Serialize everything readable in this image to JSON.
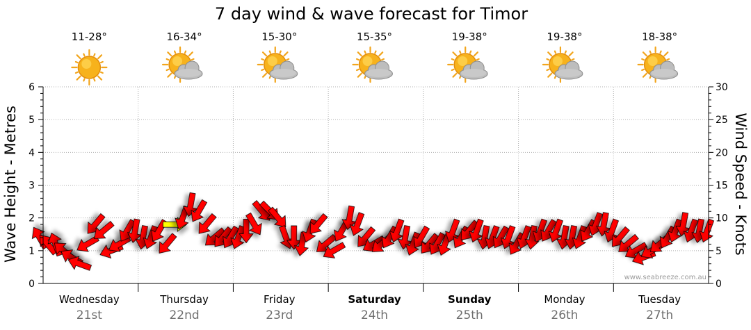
{
  "chart_data": {
    "type": "line",
    "title": "7 day wind & wave forecast for Timor",
    "ylabel_left": "Wave Height - Metres",
    "ylabel_right": "Wind Speed - Knots",
    "ylim_left": [
      0,
      6
    ],
    "ylim_right": [
      0,
      30
    ],
    "left_ticks": [
      "0",
      "1",
      "2",
      "3",
      "4",
      "5",
      "6"
    ],
    "right_ticks": [
      "0",
      "5",
      "10",
      "15",
      "20",
      "25",
      "30"
    ],
    "days": [
      {
        "name": "Wednesday",
        "date": "21st",
        "temp": "11-28°",
        "icon": "sun-icon",
        "bold": false
      },
      {
        "name": "Thursday",
        "date": "22nd",
        "temp": "16-34°",
        "icon": "sun-cloud-icon",
        "bold": false
      },
      {
        "name": "Friday",
        "date": "23rd",
        "temp": "15-30°",
        "icon": "sun-cloud-icon",
        "bold": false
      },
      {
        "name": "Saturday",
        "date": "24th",
        "temp": "15-35°",
        "icon": "sun-cloud-icon",
        "bold": true
      },
      {
        "name": "Sunday",
        "date": "25th",
        "temp": "19-38°",
        "icon": "sun-cloud-icon",
        "bold": true
      },
      {
        "name": "Monday",
        "date": "26th",
        "temp": "19-38°",
        "icon": "sun-cloud-icon",
        "bold": false
      },
      {
        "name": "Tuesday",
        "date": "27th",
        "temp": "18-38°",
        "icon": "sun-cloud-icon",
        "bold": false
      }
    ],
    "series": [
      {
        "name": "Wind Speed",
        "unit": "knots",
        "values": [
          7,
          6,
          6,
          5,
          4,
          3,
          6,
          9,
          8,
          5,
          6,
          8,
          8,
          7,
          7,
          8,
          6,
          9,
          10,
          12,
          11,
          9,
          7,
          7,
          7,
          7,
          8,
          9,
          11,
          11,
          10,
          7,
          7,
          6,
          8,
          9,
          6,
          5,
          8,
          10,
          9,
          7,
          6,
          6,
          7,
          8,
          7,
          6,
          7,
          6,
          6,
          6,
          8,
          7,
          8,
          8,
          7,
          7,
          7,
          7,
          6,
          7,
          7,
          8,
          8,
          8,
          7,
          7,
          7,
          8,
          9,
          9,
          8,
          7,
          6,
          5,
          4,
          5,
          6,
          7,
          8,
          9,
          8,
          8,
          8
        ]
      }
    ],
    "wind_direction_deg": [
      240,
      230,
      250,
      220,
      210,
      200,
      150,
      130,
      140,
      160,
      150,
      120,
      100,
      100,
      110,
      120,
      130,
      130,
      110,
      100,
      120,
      130,
      140,
      130,
      120,
      110,
      90,
      60,
      50,
      45,
      50,
      70,
      90,
      100,
      110,
      130,
      140,
      150,
      120,
      100,
      110,
      130,
      150,
      140,
      120,
      110,
      100,
      110,
      120,
      130,
      120,
      110,
      110,
      120,
      130,
      110,
      100,
      110,
      120,
      110,
      120,
      110,
      100,
      110,
      120,
      110,
      100,
      100,
      110,
      120,
      110,
      100,
      110,
      130,
      140,
      150,
      160,
      150,
      140,
      120,
      110,
      100,
      110,
      100,
      110
    ],
    "highlighted_arrow": {
      "day_index": 1,
      "color": "#ffff00"
    },
    "credit": "www.seabreeze.com.au",
    "colors": {
      "wind_arrow": "#ff0000",
      "arrow_outline": "#000000",
      "grid": "#b0b0b0"
    }
  }
}
